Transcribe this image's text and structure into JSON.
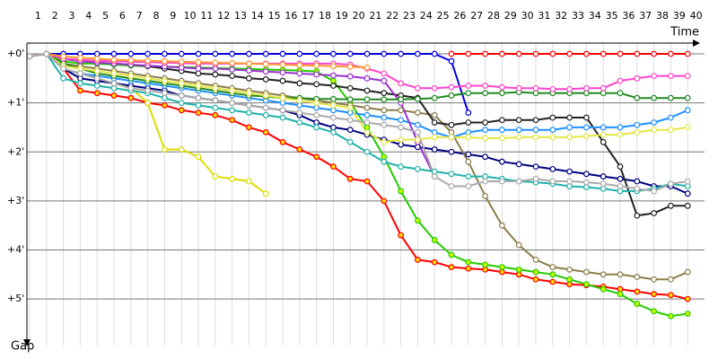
{
  "chart_data": {
    "type": "line",
    "x_label": "Time",
    "y_label": "Gap",
    "x": [
      1,
      2,
      3,
      4,
      5,
      6,
      7,
      8,
      9,
      10,
      11,
      12,
      13,
      14,
      15,
      16,
      17,
      18,
      19,
      20,
      21,
      22,
      23,
      24,
      25,
      26,
      27,
      28,
      29,
      30,
      31,
      32,
      33,
      34,
      35,
      36,
      37,
      38,
      39,
      40
    ],
    "xlim": [
      0.84,
      41
    ],
    "xticks": [
      1,
      2,
      3,
      4,
      5,
      6,
      7,
      8,
      9,
      10,
      11,
      12,
      13,
      14,
      15,
      16,
      17,
      18,
      19,
      20,
      21,
      22,
      23,
      24,
      25,
      26,
      27,
      28,
      29,
      30,
      31,
      32,
      33,
      34,
      35,
      36,
      37,
      38,
      39,
      40
    ],
    "ylim": [
      -0.22,
      5.95
    ],
    "y_inverted": true,
    "yticks": [
      {
        "value": 0,
        "label": "+0'"
      },
      {
        "value": 1,
        "label": "+1'"
      },
      {
        "value": 2,
        "label": "+2'"
      },
      {
        "value": 3,
        "label": "+3'"
      },
      {
        "value": 4,
        "label": "+4'"
      },
      {
        "value": 5,
        "label": "+5'"
      }
    ],
    "grid": true,
    "series": [
      {
        "color": "#0000dd",
        "values": [
          0.05,
          0,
          0,
          0,
          0,
          0,
          0,
          0,
          0,
          0,
          0,
          0,
          0,
          0,
          0,
          0,
          0,
          0,
          0,
          0,
          0,
          0,
          0,
          0,
          0,
          0.15,
          1.2,
          null,
          null,
          null,
          null,
          null,
          null,
          null,
          null,
          null,
          null,
          null,
          null,
          null
        ]
      },
      {
        "color": "#ff0000",
        "values": [
          null,
          null,
          null,
          null,
          null,
          null,
          null,
          null,
          null,
          null,
          null,
          null,
          null,
          null,
          null,
          null,
          null,
          null,
          null,
          null,
          null,
          null,
          null,
          null,
          null,
          0,
          0,
          0,
          0,
          0,
          0,
          0,
          0,
          0,
          0,
          0,
          0,
          0,
          0,
          0
        ]
      },
      {
        "color": "#ff0000",
        "marker_fill": "#ffdd00",
        "values": [
          0.05,
          0,
          0.3,
          0.75,
          0.8,
          0.85,
          0.9,
          1.0,
          1.05,
          1.15,
          1.2,
          1.25,
          1.35,
          1.5,
          1.6,
          1.8,
          1.95,
          2.1,
          2.3,
          2.55,
          2.6,
          3.0,
          3.7,
          4.2,
          4.25,
          4.35,
          4.38,
          4.4,
          4.45,
          4.5,
          4.6,
          4.65,
          4.7,
          4.72,
          4.75,
          4.8,
          4.85,
          4.9,
          4.92,
          5.0
        ]
      },
      {
        "color": "#22cc00",
        "marker_fill": "#ccff00",
        "values": [
          0.05,
          0,
          0.15,
          0.2,
          0.2,
          0.22,
          0.24,
          0.25,
          0.26,
          0.27,
          0.28,
          0.29,
          0.3,
          0.31,
          0.32,
          0.33,
          0.34,
          0.36,
          0.55,
          1.0,
          1.5,
          2.1,
          2.8,
          3.4,
          3.8,
          4.1,
          4.25,
          4.3,
          4.35,
          4.4,
          4.45,
          4.5,
          4.6,
          4.7,
          4.8,
          4.9,
          5.1,
          5.25,
          5.35,
          5.3
        ]
      },
      {
        "color": "#dddd00",
        "values": [
          0.05,
          0,
          0.3,
          0.4,
          0.5,
          0.6,
          0.7,
          1.0,
          1.95,
          1.95,
          2.1,
          2.5,
          2.55,
          2.6,
          2.85,
          null,
          null,
          null,
          null,
          null,
          null,
          null,
          null,
          null,
          null,
          null,
          null,
          null,
          null,
          null,
          null,
          null,
          null,
          null,
          null,
          null,
          null,
          null,
          null,
          null
        ]
      },
      {
        "color": "#000080",
        "values": [
          0.05,
          0,
          0.3,
          0.5,
          0.55,
          0.6,
          0.65,
          0.7,
          0.75,
          0.85,
          0.9,
          0.95,
          1.0,
          1.05,
          1.1,
          1.15,
          1.25,
          1.4,
          1.5,
          1.55,
          1.65,
          1.75,
          1.85,
          1.9,
          1.95,
          2.0,
          2.05,
          2.1,
          2.2,
          2.25,
          2.3,
          2.35,
          2.4,
          2.45,
          2.5,
          2.55,
          2.6,
          2.7,
          2.7,
          2.85
        ]
      },
      {
        "color": "#8b7d4b",
        "values": [
          0.05,
          0,
          0.2,
          0.25,
          0.3,
          0.35,
          0.4,
          0.45,
          0.5,
          0.55,
          0.6,
          0.65,
          0.7,
          0.75,
          0.8,
          0.85,
          0.9,
          0.95,
          1.0,
          1.05,
          1.1,
          1.15,
          1.15,
          1.2,
          1.25,
          1.6,
          2.2,
          2.9,
          3.5,
          3.9,
          4.2,
          4.35,
          4.4,
          4.45,
          4.5,
          4.5,
          4.55,
          4.6,
          4.6,
          4.45
        ]
      },
      {
        "color": "#222222",
        "values": [
          0.05,
          0,
          0.1,
          0.15,
          0.18,
          0.2,
          0.22,
          0.25,
          0.3,
          0.35,
          0.4,
          0.42,
          0.45,
          0.5,
          0.52,
          0.55,
          0.6,
          0.62,
          0.65,
          0.7,
          0.75,
          0.8,
          0.85,
          0.9,
          1.4,
          1.45,
          1.4,
          1.4,
          1.35,
          1.35,
          1.35,
          1.3,
          1.3,
          1.3,
          1.8,
          2.3,
          3.3,
          3.25,
          3.1,
          3.1
        ]
      },
      {
        "color": "#1e90ff",
        "values": [
          0.05,
          0,
          0.3,
          0.4,
          0.45,
          0.5,
          0.55,
          0.6,
          0.65,
          0.7,
          0.75,
          0.8,
          0.85,
          0.9,
          0.95,
          1.0,
          1.05,
          1.1,
          1.15,
          1.2,
          1.25,
          1.3,
          1.35,
          1.45,
          1.6,
          1.7,
          1.6,
          1.55,
          1.55,
          1.55,
          1.55,
          1.55,
          1.5,
          1.5,
          1.5,
          1.5,
          1.45,
          1.4,
          1.3,
          1.15
        ]
      },
      {
        "color": "#9933cc",
        "values": [
          0.05,
          0,
          0.1,
          0.15,
          0.18,
          0.2,
          0.22,
          0.24,
          0.26,
          0.28,
          0.3,
          0.3,
          0.32,
          0.34,
          0.36,
          0.38,
          0.4,
          0.42,
          0.44,
          0.46,
          0.5,
          0.55,
          1.0,
          1.8,
          2.5,
          null,
          null,
          null,
          null,
          null,
          null,
          null,
          null,
          null,
          null,
          null,
          null,
          null,
          null,
          null
        ]
      },
      {
        "color": "#228b22",
        "values": [
          0.05,
          0,
          0.2,
          0.3,
          0.4,
          0.45,
          0.5,
          0.55,
          0.6,
          0.65,
          0.7,
          0.75,
          0.8,
          0.85,
          0.87,
          0.9,
          0.9,
          0.92,
          0.92,
          0.93,
          0.93,
          0.93,
          0.93,
          0.92,
          0.9,
          0.85,
          0.8,
          0.8,
          0.8,
          0.78,
          0.8,
          0.8,
          0.8,
          0.8,
          0.8,
          0.8,
          0.9,
          0.9,
          0.9,
          0.9
        ]
      },
      {
        "color": "#20b2aa",
        "values": [
          0.05,
          0,
          0.5,
          0.6,
          0.65,
          0.7,
          0.75,
          0.8,
          0.9,
          1.0,
          1.05,
          1.1,
          1.15,
          1.2,
          1.25,
          1.3,
          1.4,
          1.5,
          1.6,
          1.8,
          2.0,
          2.2,
          2.3,
          2.35,
          2.4,
          2.45,
          2.5,
          2.5,
          2.55,
          2.6,
          2.62,
          2.65,
          2.7,
          2.72,
          2.75,
          2.8,
          2.8,
          2.75,
          2.65,
          2.7
        ]
      },
      {
        "color": "#e6e645",
        "values": [
          0.05,
          0,
          0.25,
          0.3,
          0.35,
          0.4,
          0.45,
          0.5,
          0.55,
          0.6,
          0.65,
          0.7,
          0.75,
          0.8,
          0.85,
          0.9,
          0.95,
          1.0,
          1.05,
          1.1,
          1.6,
          1.8,
          1.75,
          1.75,
          1.7,
          1.7,
          1.7,
          1.72,
          1.72,
          1.7,
          1.7,
          1.7,
          1.7,
          1.68,
          1.65,
          1.65,
          1.6,
          1.55,
          1.55,
          1.5
        ]
      },
      {
        "color": "#ff44cc",
        "values": [
          0.05,
          0,
          0.1,
          0.12,
          0.14,
          0.15,
          0.16,
          0.17,
          0.18,
          0.19,
          0.2,
          0.2,
          0.2,
          0.2,
          0.2,
          0.2,
          0.2,
          0.2,
          0.2,
          0.22,
          0.3,
          0.4,
          0.6,
          0.7,
          0.7,
          0.68,
          0.65,
          0.65,
          0.68,
          0.7,
          0.7,
          0.72,
          0.72,
          0.7,
          0.7,
          0.55,
          0.5,
          0.45,
          0.45,
          0.45
        ]
      },
      {
        "color": "#ff9933",
        "values": [
          0.05,
          0,
          0.05,
          0.08,
          0.1,
          0.12,
          0.13,
          0.14,
          0.15,
          0.16,
          0.17,
          0.18,
          0.19,
          0.2,
          0.21,
          0.22,
          0.23,
          0.24,
          0.25,
          0.26,
          0.28,
          null,
          null,
          null,
          null,
          null,
          null,
          null,
          null,
          null,
          null,
          null,
          null,
          null,
          null,
          null,
          null,
          null,
          null,
          null
        ]
      },
      {
        "color": "#aaaaaa",
        "values": [
          0.05,
          0,
          0.3,
          0.4,
          0.5,
          0.6,
          0.7,
          0.75,
          0.8,
          0.85,
          0.9,
          0.95,
          1.0,
          1.05,
          1.1,
          1.15,
          1.2,
          1.25,
          1.3,
          1.35,
          1.4,
          1.45,
          1.5,
          1.6,
          2.5,
          2.7,
          2.7,
          2.6,
          2.6,
          2.6,
          2.55,
          2.6,
          2.6,
          2.62,
          2.65,
          2.7,
          2.75,
          2.8,
          2.65,
          2.6
        ]
      }
    ]
  }
}
